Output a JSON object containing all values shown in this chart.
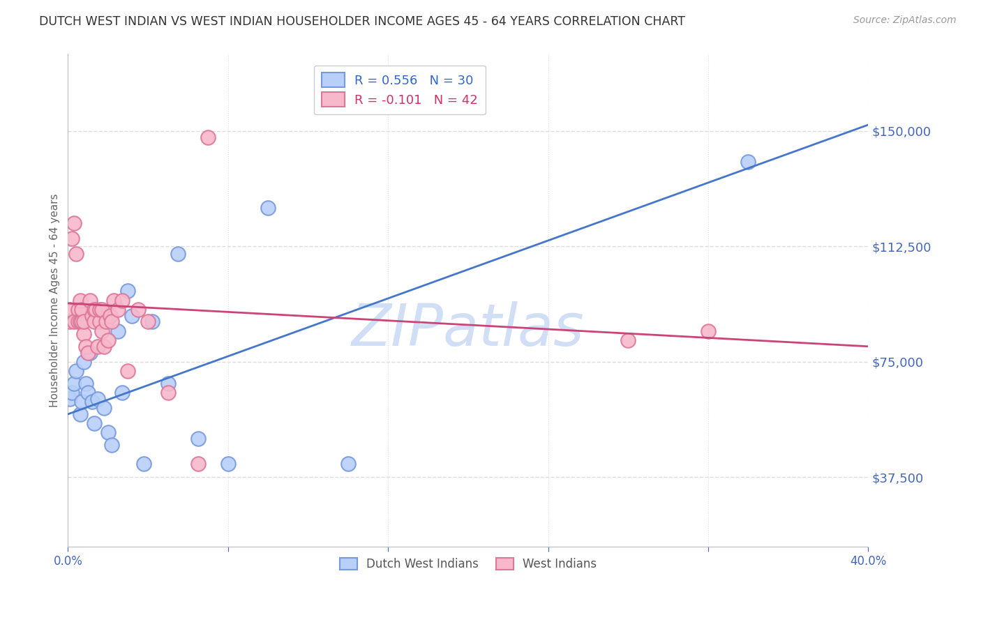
{
  "title": "DUTCH WEST INDIAN VS WEST INDIAN HOUSEHOLDER INCOME AGES 45 - 64 YEARS CORRELATION CHART",
  "source": "Source: ZipAtlas.com",
  "ylabel": "Householder Income Ages 45 - 64 years",
  "xlim": [
    0.0,
    0.4
  ],
  "ylim": [
    15000,
    175000
  ],
  "xticks": [
    0.0,
    0.08,
    0.16,
    0.24,
    0.32,
    0.4
  ],
  "xticklabels": [
    "0.0%",
    "",
    "",
    "",
    "",
    "40.0%"
  ],
  "ytick_values": [
    37500,
    75000,
    112500,
    150000
  ],
  "ytick_labels": [
    "$37,500",
    "$75,000",
    "$112,500",
    "$150,000"
  ],
  "blue_scatter_color": "#b8d0f8",
  "pink_scatter_color": "#f8b8cc",
  "blue_edge_color": "#7799dd",
  "pink_edge_color": "#dd7799",
  "blue_line_color": "#4477cc",
  "pink_line_color": "#cc4477",
  "blue_line_x": [
    0.0,
    0.4
  ],
  "blue_line_y": [
    58000,
    152000
  ],
  "pink_line_x": [
    0.0,
    0.4
  ],
  "pink_line_y": [
    94000,
    80000
  ],
  "dutch_west_indians_x": [
    0.001,
    0.002,
    0.003,
    0.004,
    0.006,
    0.007,
    0.008,
    0.009,
    0.01,
    0.011,
    0.012,
    0.013,
    0.015,
    0.016,
    0.018,
    0.02,
    0.022,
    0.025,
    0.027,
    0.03,
    0.032,
    0.038,
    0.042,
    0.05,
    0.055,
    0.065,
    0.08,
    0.1,
    0.14,
    0.34
  ],
  "dutch_west_indians_y": [
    63000,
    65000,
    68000,
    72000,
    58000,
    62000,
    75000,
    68000,
    65000,
    78000,
    62000,
    55000,
    63000,
    88000,
    60000,
    52000,
    48000,
    85000,
    65000,
    98000,
    90000,
    42000,
    88000,
    68000,
    110000,
    50000,
    42000,
    125000,
    42000,
    140000
  ],
  "west_indians_x": [
    0.001,
    0.001,
    0.002,
    0.003,
    0.003,
    0.004,
    0.005,
    0.005,
    0.006,
    0.006,
    0.007,
    0.007,
    0.008,
    0.008,
    0.009,
    0.01,
    0.011,
    0.012,
    0.013,
    0.013,
    0.014,
    0.015,
    0.016,
    0.016,
    0.017,
    0.017,
    0.018,
    0.019,
    0.02,
    0.021,
    0.022,
    0.023,
    0.025,
    0.027,
    0.03,
    0.035,
    0.04,
    0.05,
    0.065,
    0.07,
    0.28,
    0.32
  ],
  "west_indians_y": [
    88000,
    92000,
    115000,
    120000,
    88000,
    110000,
    92000,
    88000,
    88000,
    95000,
    88000,
    92000,
    84000,
    88000,
    80000,
    78000,
    95000,
    90000,
    92000,
    88000,
    92000,
    80000,
    88000,
    92000,
    92000,
    85000,
    80000,
    88000,
    82000,
    90000,
    88000,
    95000,
    92000,
    95000,
    72000,
    92000,
    88000,
    65000,
    42000,
    148000,
    82000,
    85000
  ],
  "legend_line1": "R = 0.556   N = 30",
  "legend_line2": "R = -0.101   N = 42",
  "legend_blue_text_color": "#3366cc",
  "legend_pink_text_color": "#cc3366",
  "axis_label_color": "#4466bb",
  "title_color": "#333333",
  "source_color": "#999999",
  "grid_color": "#dddddd",
  "background_color": "#ffffff",
  "watermark_text": "ZIPatlas",
  "watermark_color": "#d0dff5"
}
